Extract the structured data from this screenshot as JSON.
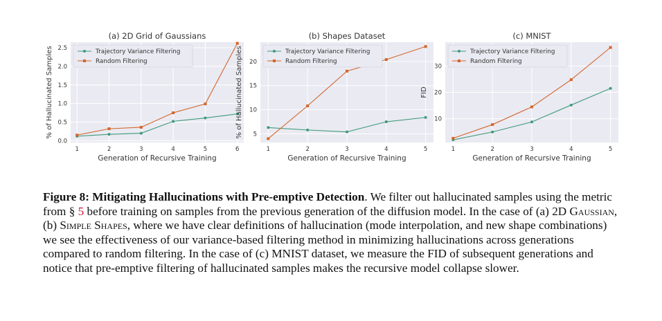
{
  "colors": {
    "trajectory": "#3d9a7a",
    "random": "#d2662a",
    "plot_bg": "#eaeaf2",
    "grid": "#ffffff"
  },
  "chart_data": [
    {
      "type": "line",
      "title": "(a) 2D Grid of Gaussians",
      "xlabel": "Generation of Recursive Training",
      "ylabel": "% of Hallucinated Samples",
      "x": [
        1,
        2,
        3,
        4,
        5,
        6
      ],
      "xlim": [
        0.8,
        6.2
      ],
      "ylim": [
        -0.05,
        2.65
      ],
      "xticks": [
        "1",
        "2",
        "3",
        "4",
        "5",
        "6"
      ],
      "yticks": [
        "0.0",
        "0.5",
        "1.0",
        "1.5",
        "2.0",
        "2.5"
      ],
      "ytick_values": [
        0.0,
        0.5,
        1.0,
        1.5,
        2.0,
        2.5
      ],
      "grid": true,
      "legend_position": "upper-left",
      "series": [
        {
          "name": "Trajectory Variance Filtering",
          "values": [
            0.12,
            0.17,
            0.2,
            0.52,
            0.61,
            0.72
          ],
          "color": "#3d9a7a",
          "marker": "dot"
        },
        {
          "name": "Random Filtering",
          "values": [
            0.15,
            0.32,
            0.36,
            0.75,
            0.99,
            2.62
          ],
          "color": "#d2662a",
          "marker": "square"
        }
      ]
    },
    {
      "type": "line",
      "title": "(b) Shapes Dataset",
      "xlabel": "Generation of Recursive Training",
      "ylabel": "% of Hallucinated Samples",
      "x": [
        1,
        2,
        3,
        4,
        5
      ],
      "xlim": [
        0.8,
        5.2
      ],
      "ylim": [
        3.2,
        24.0
      ],
      "xticks": [
        "1",
        "2",
        "3",
        "4",
        "5"
      ],
      "yticks": [
        "5",
        "10",
        "15",
        "20"
      ],
      "ytick_values": [
        5,
        10,
        15,
        20
      ],
      "grid": true,
      "legend_position": "upper-left",
      "series": [
        {
          "name": "Trajectory Variance Filtering",
          "values": [
            6.3,
            5.8,
            5.4,
            7.5,
            8.4
          ],
          "color": "#3d9a7a",
          "marker": "dot"
        },
        {
          "name": "Random Filtering",
          "values": [
            4.0,
            10.8,
            18.0,
            20.4,
            23.1
          ],
          "color": "#d2662a",
          "marker": "square"
        }
      ]
    },
    {
      "type": "line",
      "title": "(c) MNIST",
      "xlabel": "Generation of Recursive Training",
      "ylabel": "FID",
      "x": [
        1,
        2,
        3,
        4,
        5
      ],
      "xlim": [
        0.8,
        5.2
      ],
      "ylim": [
        1.0,
        39.0
      ],
      "xticks": [
        "1",
        "2",
        "3",
        "4",
        "5"
      ],
      "yticks": [
        "10",
        "20",
        "30"
      ],
      "ytick_values": [
        10,
        20,
        30
      ],
      "grid": true,
      "legend_position": "upper-left",
      "series": [
        {
          "name": "Trajectory Variance Filtering",
          "values": [
            2.0,
            5.0,
            8.8,
            15.2,
            21.5
          ],
          "color": "#3d9a7a",
          "marker": "dot"
        },
        {
          "name": "Random Filtering",
          "values": [
            2.6,
            7.8,
            14.5,
            24.8,
            37.0
          ],
          "color": "#d2662a",
          "marker": "square"
        }
      ]
    }
  ],
  "caption": {
    "label": "Figure 8:",
    "title": "Mitigating Hallucinations with Pre-emptive Detection",
    "text1": ". We filter out hallucinated samples using the metric from § ",
    "ref": "5",
    "text2": " before training on samples from the previous generation of the diffusion model. In the case of (a) 2D ",
    "sc1": "Gaussian",
    "text3": ", (b) ",
    "sc2": "Simple Shapes",
    "text4": ", where we have clear definitions of hallucination (mode interpolation, and new shape combinations) we see the effectiveness of our variance-based filtering method in minimizing hallucinations across generations compared to random filtering. In the case of (c) MNIST dataset, we measure the FID of subsequent generations and notice that pre-emptive filtering of hallucinated samples makes the recursive model collapse slower."
  }
}
